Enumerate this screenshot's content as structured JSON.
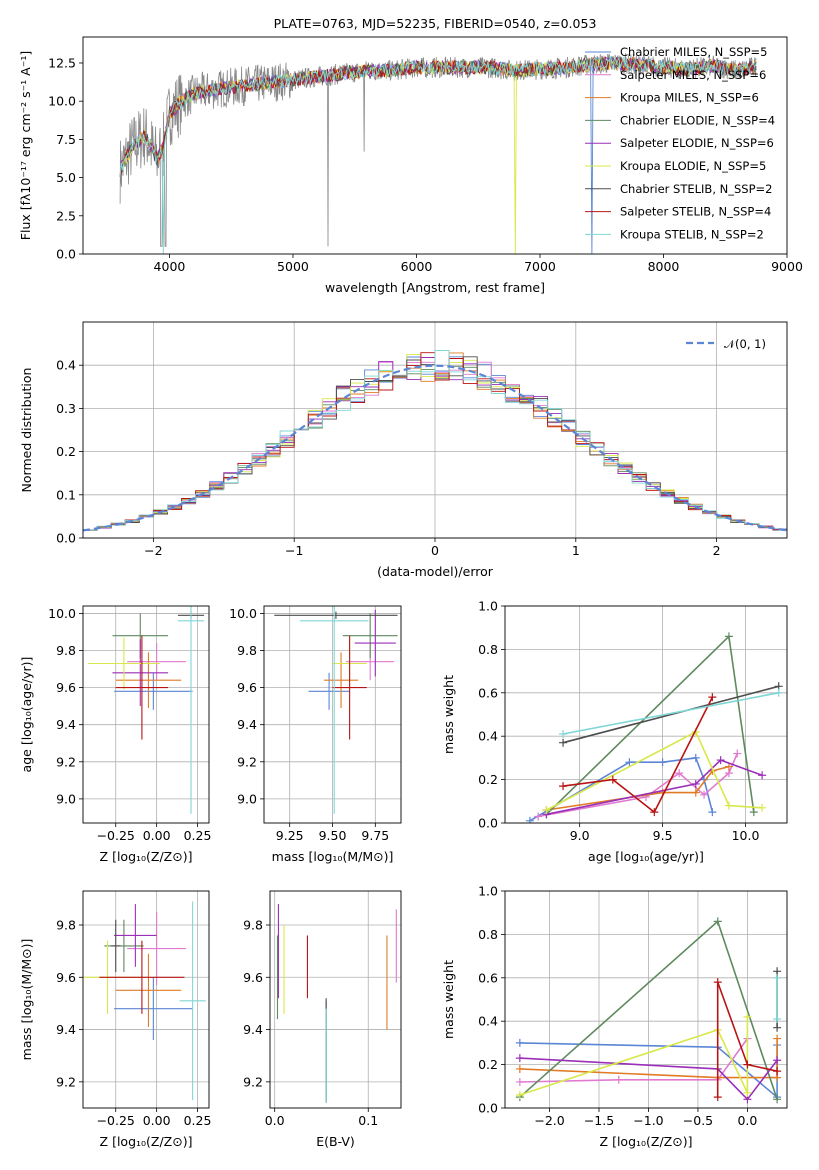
{
  "colors": [
    "#5b86d6",
    "#e07ad0",
    "#e07b26",
    "#5e8a5e",
    "#9a2fb8",
    "#d8e84a",
    "#4d4d4d",
    "#b81414",
    "#7fd6d6"
  ],
  "chart_data": [
    {
      "id": "spectrum",
      "type": "line",
      "title": "PLATE=0763, MJD=52235, FIBERID=0540, z=0.053",
      "xlabel": "wavelength [Angstrom, rest frame]",
      "ylabel": "Flux [fλ10⁻¹⁷ erg cm⁻² s⁻¹ A⁻¹]",
      "xlim": [
        3300,
        9000
      ],
      "ylim": [
        0,
        14.2
      ],
      "xticks": [
        "4000",
        "5000",
        "6000",
        "7000",
        "8000",
        "9000"
      ],
      "yticks": [
        "0.0",
        "2.5",
        "5.0",
        "7.5",
        "10.0",
        "12.5"
      ],
      "legend_position": "upper-right",
      "legend": [
        "Chabrier MILES, N_SSP=5",
        "Salpeter MILES, N_SSP=6",
        "Kroupa MILES, N_SSP=6",
        "Chabrier ELODIE, N_SSP=4",
        "Salpeter ELODIE, N_SSP=6",
        "Kroupa ELODIE, N_SSP=5",
        "Chabrier STELIB, N_SSP=2",
        "Salpeter STELIB, N_SSP=4",
        "Kroupa STELIB, N_SSP=2"
      ],
      "continuum": {
        "wavelength": [
          3600,
          3700,
          3800,
          3900,
          3950,
          4000,
          4100,
          4200,
          4400,
          4600,
          4800,
          5000,
          5200,
          5400,
          5600,
          5800,
          6000,
          6200,
          6400,
          6600,
          6800,
          7000,
          7200,
          7400,
          7600,
          7800,
          8000,
          8200,
          8400,
          8600,
          8750
        ],
        "flux": [
          5.5,
          7.0,
          7.8,
          6.2,
          7.0,
          9.2,
          10.0,
          10.5,
          10.8,
          11.0,
          11.2,
          11.4,
          11.6,
          11.8,
          12.0,
          12.0,
          12.2,
          12.2,
          12.2,
          12.2,
          12.0,
          12.1,
          12.2,
          12.4,
          12.5,
          12.4,
          12.2,
          12.1,
          12.3,
          12.0,
          12.3
        ]
      }
    },
    {
      "id": "residuals",
      "type": "histogram",
      "xlabel": "(data-model)/error",
      "ylabel": "Normed distribution",
      "xlim": [
        -2.5,
        2.5
      ],
      "ylim": [
        0,
        0.5
      ],
      "xticks": [
        "−2",
        "−1",
        "0",
        "1",
        "2"
      ],
      "yticks": [
        "0.0",
        "0.1",
        "0.2",
        "0.3",
        "0.4"
      ],
      "legend": [
        "𝒩(0, 1)"
      ],
      "legend_position": "upper-right",
      "bin_width": 0.1,
      "reference_curve": "normal(0,1)"
    },
    {
      "id": "age-vs-Z",
      "type": "errorbar",
      "xlabel": "Z [log₁₀(Z/Z⊙)]",
      "ylabel": "age  [log₁₀(age/yr)]",
      "xlim": [
        -0.45,
        0.32
      ],
      "ylim": [
        8.87,
        10.04
      ],
      "xticks": [
        "−0.25",
        "0.00",
        "0.25"
      ],
      "yticks": [
        "9.0",
        "9.2",
        "9.4",
        "9.6",
        "9.8",
        "10.0"
      ],
      "points": [
        {
          "x": -0.02,
          "xerr": 0.24,
          "y": 9.58,
          "yerr": 0.1
        },
        {
          "x": 0.0,
          "xerr": 0.18,
          "y": 9.74,
          "yerr": 0.1
        },
        {
          "x": -0.05,
          "xerr": 0.2,
          "y": 9.64,
          "yerr": 0.15
        },
        {
          "x": -0.1,
          "xerr": 0.17,
          "y": 9.88,
          "yerr": 0.12
        },
        {
          "x": -0.1,
          "xerr": 0.17,
          "y": 9.68,
          "yerr": 0.18
        },
        {
          "x": -0.2,
          "xerr": 0.22,
          "y": 9.73,
          "yerr": 0.14
        },
        {
          "x": 0.21,
          "xerr": 0.08,
          "y": 9.99,
          "yerr": 0.02
        },
        {
          "x": -0.09,
          "xerr": 0.16,
          "y": 9.6,
          "yerr": 0.28
        },
        {
          "x": 0.21,
          "xerr": 0.08,
          "y": 9.96,
          "yerr": 1.04
        }
      ]
    },
    {
      "id": "age-vs-mass",
      "type": "errorbar",
      "xlabel": "mass [log₁₀(M/M⊙)]",
      "ylabel": "",
      "xlim": [
        9.1,
        9.9
      ],
      "ylim": [
        8.87,
        10.04
      ],
      "xticks": [
        "9.25",
        "9.50",
        "9.75"
      ],
      "yticks": [
        "9.0",
        "9.2",
        "9.4",
        "9.6",
        "9.8",
        "10.0"
      ],
      "points": [
        {
          "x": 9.48,
          "xerr": 0.12,
          "y": 9.58,
          "yerr": 0.1
        },
        {
          "x": 9.72,
          "xerr": 0.14,
          "y": 9.74,
          "yerr": 0.1
        },
        {
          "x": 9.55,
          "xerr": 0.1,
          "y": 9.64,
          "yerr": 0.15
        },
        {
          "x": 9.72,
          "xerr": 0.16,
          "y": 9.88,
          "yerr": 0.12
        },
        {
          "x": 9.75,
          "xerr": 0.12,
          "y": 9.84,
          "yerr": 0.18
        },
        {
          "x": 9.6,
          "xerr": 0.1,
          "y": 9.73,
          "yerr": 0.14
        },
        {
          "x": 9.52,
          "xerr": 0.36,
          "y": 9.99,
          "yerr": 0.02
        },
        {
          "x": 9.6,
          "xerr": 0.1,
          "y": 9.6,
          "yerr": 0.28
        },
        {
          "x": 9.51,
          "xerr": 0.2,
          "y": 9.96,
          "yerr": 1.04
        }
      ]
    },
    {
      "id": "weight-vs-age",
      "type": "line",
      "xlabel": "age  [log₁₀(age/yr)]",
      "ylabel": "mass weight",
      "xlim": [
        8.55,
        10.25
      ],
      "ylim": [
        0,
        1.0
      ],
      "xticks": [
        "9.0",
        "9.5",
        "10.0"
      ],
      "yticks": [
        "0.0",
        "0.2",
        "0.4",
        "0.6",
        "0.8",
        "1.0"
      ],
      "series": [
        {
          "x": [
            8.7,
            9.3,
            9.5,
            9.7,
            9.75,
            9.8
          ],
          "y": [
            0.01,
            0.28,
            0.28,
            0.3,
            0.2,
            0.05
          ]
        },
        {
          "x": [
            8.75,
            9.4,
            9.6,
            9.75,
            9.9,
            9.95
          ],
          "y": [
            0.03,
            0.12,
            0.23,
            0.13,
            0.23,
            0.32
          ]
        },
        {
          "x": [
            8.8,
            9.5,
            9.7,
            9.8,
            9.9
          ],
          "y": [
            0.06,
            0.14,
            0.14,
            0.24,
            0.26
          ]
        },
        {
          "x": [
            8.8,
            9.9,
            10.05
          ],
          "y": [
            0.04,
            0.86,
            0.05
          ]
        },
        {
          "x": [
            8.8,
            9.7,
            9.85,
            10.1
          ],
          "y": [
            0.04,
            0.18,
            0.29,
            0.22
          ]
        },
        {
          "x": [
            8.8,
            9.7,
            9.9,
            10.1
          ],
          "y": [
            0.06,
            0.42,
            0.08,
            0.07
          ]
        },
        {
          "x": [
            8.9,
            10.2
          ],
          "y": [
            0.37,
            0.63
          ]
        },
        {
          "x": [
            8.9,
            9.2,
            9.45,
            9.8
          ],
          "y": [
            0.17,
            0.2,
            0.05,
            0.58
          ]
        },
        {
          "x": [
            8.9,
            10.2
          ],
          "y": [
            0.41,
            0.6
          ]
        }
      ]
    },
    {
      "id": "mass-vs-Z",
      "type": "errorbar",
      "xlabel": "Z [log₁₀(Z/Z⊙)]",
      "ylabel": "mass [log₁₀(M/M⊙)]",
      "xlim": [
        -0.45,
        0.32
      ],
      "ylim": [
        9.1,
        9.93
      ],
      "xticks": [
        "−0.25",
        "0.00",
        "0.25"
      ],
      "yticks": [
        "9.2",
        "9.4",
        "9.6",
        "9.8"
      ],
      "points": [
        {
          "x": -0.02,
          "xerr": 0.24,
          "y": 9.48,
          "yerr": 0.12
        },
        {
          "x": 0.0,
          "xerr": 0.18,
          "y": 9.71,
          "yerr": 0.14
        },
        {
          "x": -0.05,
          "xerr": 0.2,
          "y": 9.55,
          "yerr": 0.14
        },
        {
          "x": -0.2,
          "xerr": 0.12,
          "y": 9.72,
          "yerr": 0.1
        },
        {
          "x": -0.13,
          "xerr": 0.13,
          "y": 9.76,
          "yerr": 0.12
        },
        {
          "x": -0.3,
          "xerr": 0.22,
          "y": 9.6,
          "yerr": 0.14
        },
        {
          "x": -0.25,
          "xerr": 0.03,
          "y": 9.72,
          "yerr": 0.1
        },
        {
          "x": -0.09,
          "xerr": 0.26,
          "y": 9.6,
          "yerr": 0.14
        },
        {
          "x": 0.22,
          "xerr": 0.08,
          "y": 9.51,
          "yerr": 0.38
        }
      ]
    },
    {
      "id": "mass-vs-ebv",
      "type": "errorbar",
      "xlabel": "E(B-V)",
      "ylabel": "",
      "xlim": [
        -0.005,
        0.135
      ],
      "ylim": [
        9.1,
        9.93
      ],
      "xticks": [
        "0.0",
        "0.1"
      ],
      "yticks": [
        "9.2",
        "9.4",
        "9.6",
        "9.8"
      ],
      "points": [
        {
          "x": 0.055,
          "y": 9.32,
          "yerr": 0.19
        },
        {
          "x": 0.13,
          "y": 9.72,
          "yerr": 0.14
        },
        {
          "x": 0.12,
          "y": 9.58,
          "yerr": 0.18
        },
        {
          "x": 0.003,
          "y": 9.6,
          "yerr": 0.16
        },
        {
          "x": 0.004,
          "y": 9.7,
          "yerr": 0.18
        },
        {
          "x": 0.01,
          "y": 9.63,
          "yerr": 0.17
        },
        {
          "x": 0.055,
          "y": 9.32,
          "yerr": 0.2
        },
        {
          "x": 0.035,
          "y": 9.64,
          "yerr": 0.12
        },
        {
          "x": 0.055,
          "y": 9.3,
          "yerr": 0.18
        }
      ]
    },
    {
      "id": "weight-vs-Z",
      "type": "line",
      "xlabel": "Z [log₁₀(Z/Z⊙)]",
      "ylabel": "mass weight",
      "xlim": [
        -2.45,
        0.4
      ],
      "ylim": [
        0,
        1.0
      ],
      "xticks": [
        "−2.0",
        "−1.5",
        "−1.0",
        "−0.5",
        "0.0"
      ],
      "yticks": [
        "0.0",
        "0.2",
        "0.4",
        "0.6",
        "0.8",
        "1.0"
      ],
      "series": [
        {
          "x": [
            -2.3,
            -0.3,
            0.3,
            0.3
          ],
          "y": [
            0.3,
            0.28,
            0.05,
            0.29
          ]
        },
        {
          "x": [
            -2.3,
            -1.3,
            -0.3,
            0.0
          ],
          "y": [
            0.12,
            0.13,
            0.13,
            0.32
          ]
        },
        {
          "x": [
            -2.3,
            -0.3,
            0.3,
            0.3
          ],
          "y": [
            0.18,
            0.14,
            0.14,
            0.32
          ]
        },
        {
          "x": [
            -2.3,
            -0.3,
            0.3
          ],
          "y": [
            0.05,
            0.86,
            0.04
          ]
        },
        {
          "x": [
            -2.3,
            -0.3,
            0.0,
            0.3
          ],
          "y": [
            0.23,
            0.18,
            0.04,
            0.22
          ]
        },
        {
          "x": [
            -2.3,
            -0.3,
            0.0,
            0.0
          ],
          "y": [
            0.06,
            0.36,
            0.07,
            0.42
          ]
        },
        {
          "x": [
            0.3,
            0.3
          ],
          "y": [
            0.37,
            0.63
          ]
        },
        {
          "x": [
            -0.3,
            -0.3,
            0.0,
            0.3
          ],
          "y": [
            0.05,
            0.58,
            0.2,
            0.17
          ]
        },
        {
          "x": [
            0.3,
            0.3
          ],
          "y": [
            0.41,
            0.6
          ]
        }
      ]
    }
  ]
}
